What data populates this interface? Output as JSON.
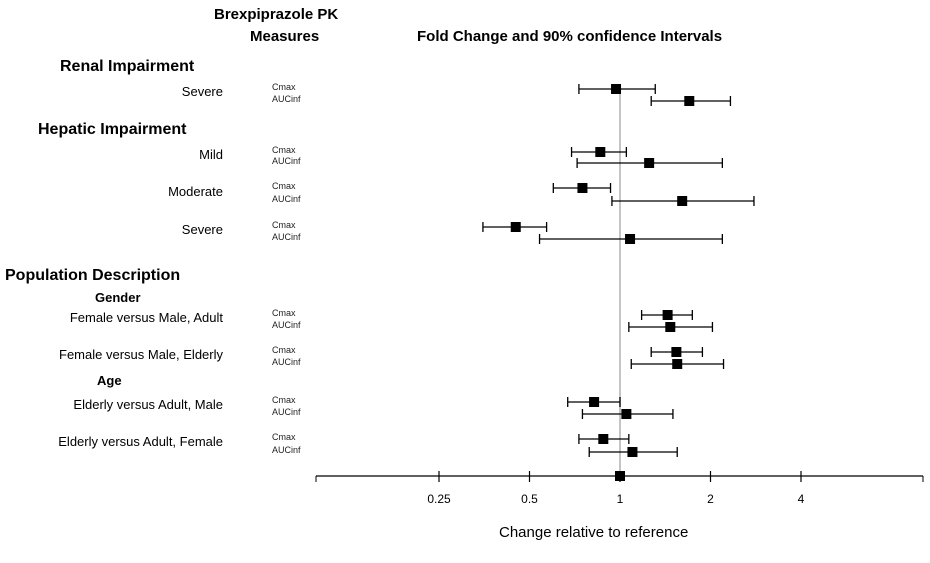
{
  "chart_data": {
    "type": "forest",
    "title_left": [
      "Brexpiprazole PK",
      "Measures"
    ],
    "title_right": "Fold Change and 90% confidence Intervals",
    "xlabel": "Change relative to reference",
    "x_scale": "log2",
    "xlim": [
      0.095,
      10.2
    ],
    "x_ticks": [
      0.25,
      0.5,
      1,
      2,
      4
    ],
    "x_tick_labels": [
      "0.25",
      "0.5",
      "1",
      "2",
      "4"
    ],
    "reference_value": 1,
    "sections": [
      {
        "title": "Renal Impairment",
        "groups": [
          {
            "label": "Severe",
            "rows": [
              {
                "measure": "Cmax",
                "value": 0.97,
                "lo": 0.73,
                "hi": 1.31
              },
              {
                "measure": "AUCinf",
                "value": 1.7,
                "lo": 1.27,
                "hi": 2.33
              }
            ]
          }
        ]
      },
      {
        "title": "Hepatic Impairment",
        "groups": [
          {
            "label": "Mild",
            "rows": [
              {
                "measure": "Cmax",
                "value": 0.86,
                "lo": 0.69,
                "hi": 1.05
              },
              {
                "measure": "AUCinf",
                "value": 1.25,
                "lo": 0.72,
                "hi": 2.19
              }
            ]
          },
          {
            "label": "Moderate",
            "rows": [
              {
                "measure": "Cmax",
                "value": 0.75,
                "lo": 0.6,
                "hi": 0.93
              },
              {
                "measure": "AUCinf",
                "value": 1.61,
                "lo": 0.94,
                "hi": 2.79
              }
            ]
          },
          {
            "label": "Severe",
            "rows": [
              {
                "measure": "Cmax",
                "value": 0.45,
                "lo": 0.35,
                "hi": 0.57
              },
              {
                "measure": "AUCinf",
                "value": 1.08,
                "lo": 0.54,
                "hi": 2.19
              }
            ]
          }
        ]
      },
      {
        "title": "Population Description",
        "subsections": [
          "Gender",
          "Age"
        ],
        "groups": [
          {
            "label": "Female versus Male, Adult",
            "rows": [
              {
                "measure": "Cmax",
                "value": 1.44,
                "lo": 1.18,
                "hi": 1.74
              },
              {
                "measure": "AUCinf",
                "value": 1.47,
                "lo": 1.07,
                "hi": 2.03
              }
            ]
          },
          {
            "label": "Female versus Male, Elderly",
            "rows": [
              {
                "measure": "Cmax",
                "value": 1.54,
                "lo": 1.27,
                "hi": 1.88
              },
              {
                "measure": "AUCinf",
                "value": 1.55,
                "lo": 1.09,
                "hi": 2.21
              }
            ]
          },
          {
            "label": "Elderly versus Adult, Male",
            "rows": [
              {
                "measure": "Cmax",
                "value": 0.82,
                "lo": 0.67,
                "hi": 1.0
              },
              {
                "measure": "AUCinf",
                "value": 1.05,
                "lo": 0.75,
                "hi": 1.5
              }
            ]
          },
          {
            "label": "Elderly versus Adult, Female",
            "rows": [
              {
                "measure": "Cmax",
                "value": 0.88,
                "lo": 0.73,
                "hi": 1.07
              },
              {
                "measure": "AUCinf",
                "value": 1.1,
                "lo": 0.79,
                "hi": 1.55
              }
            ]
          }
        ]
      }
    ]
  }
}
